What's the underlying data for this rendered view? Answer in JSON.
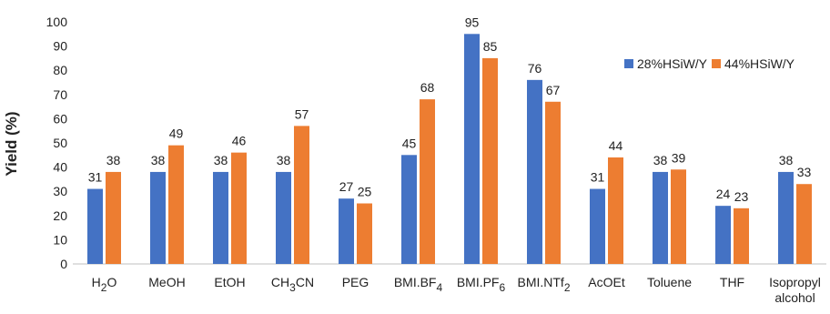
{
  "chart_data": {
    "type": "bar",
    "ylabel": "Yield (%)",
    "xlabel": "",
    "ylim": [
      0,
      100
    ],
    "yticks": [
      0,
      10,
      20,
      30,
      40,
      50,
      60,
      70,
      80,
      90,
      100
    ],
    "grid": false,
    "legend_position": "top-right",
    "categories": [
      {
        "main": "H",
        "sub": "2",
        "rest": "O"
      },
      {
        "main": "MeOH",
        "sub": "",
        "rest": ""
      },
      {
        "main": "EtOH",
        "sub": "",
        "rest": ""
      },
      {
        "main": "CH",
        "sub": "3",
        "rest": "CN"
      },
      {
        "main": "PEG",
        "sub": "",
        "rest": ""
      },
      {
        "main": "BMI.BF",
        "sub": "4",
        "rest": ""
      },
      {
        "main": "BMI.PF",
        "sub": "6",
        "rest": ""
      },
      {
        "main": "BMI.NTf",
        "sub": "2",
        "rest": ""
      },
      {
        "main": "AcOEt",
        "sub": "",
        "rest": ""
      },
      {
        "main": "Toluene",
        "sub": "",
        "rest": ""
      },
      {
        "main": "THF",
        "sub": "",
        "rest": ""
      },
      {
        "main": "Isopropyl",
        "sub": "",
        "rest": "",
        "line2": "alcohol"
      }
    ],
    "series": [
      {
        "name": "28%HSiW/Y",
        "color": "#4472C4",
        "values": [
          31,
          38,
          38,
          38,
          27,
          45,
          95,
          76,
          31,
          38,
          24,
          38
        ]
      },
      {
        "name": "44%HSiW/Y",
        "color": "#ED7D31",
        "values": [
          38,
          49,
          46,
          57,
          25,
          68,
          85,
          67,
          44,
          39,
          23,
          33
        ]
      }
    ]
  }
}
